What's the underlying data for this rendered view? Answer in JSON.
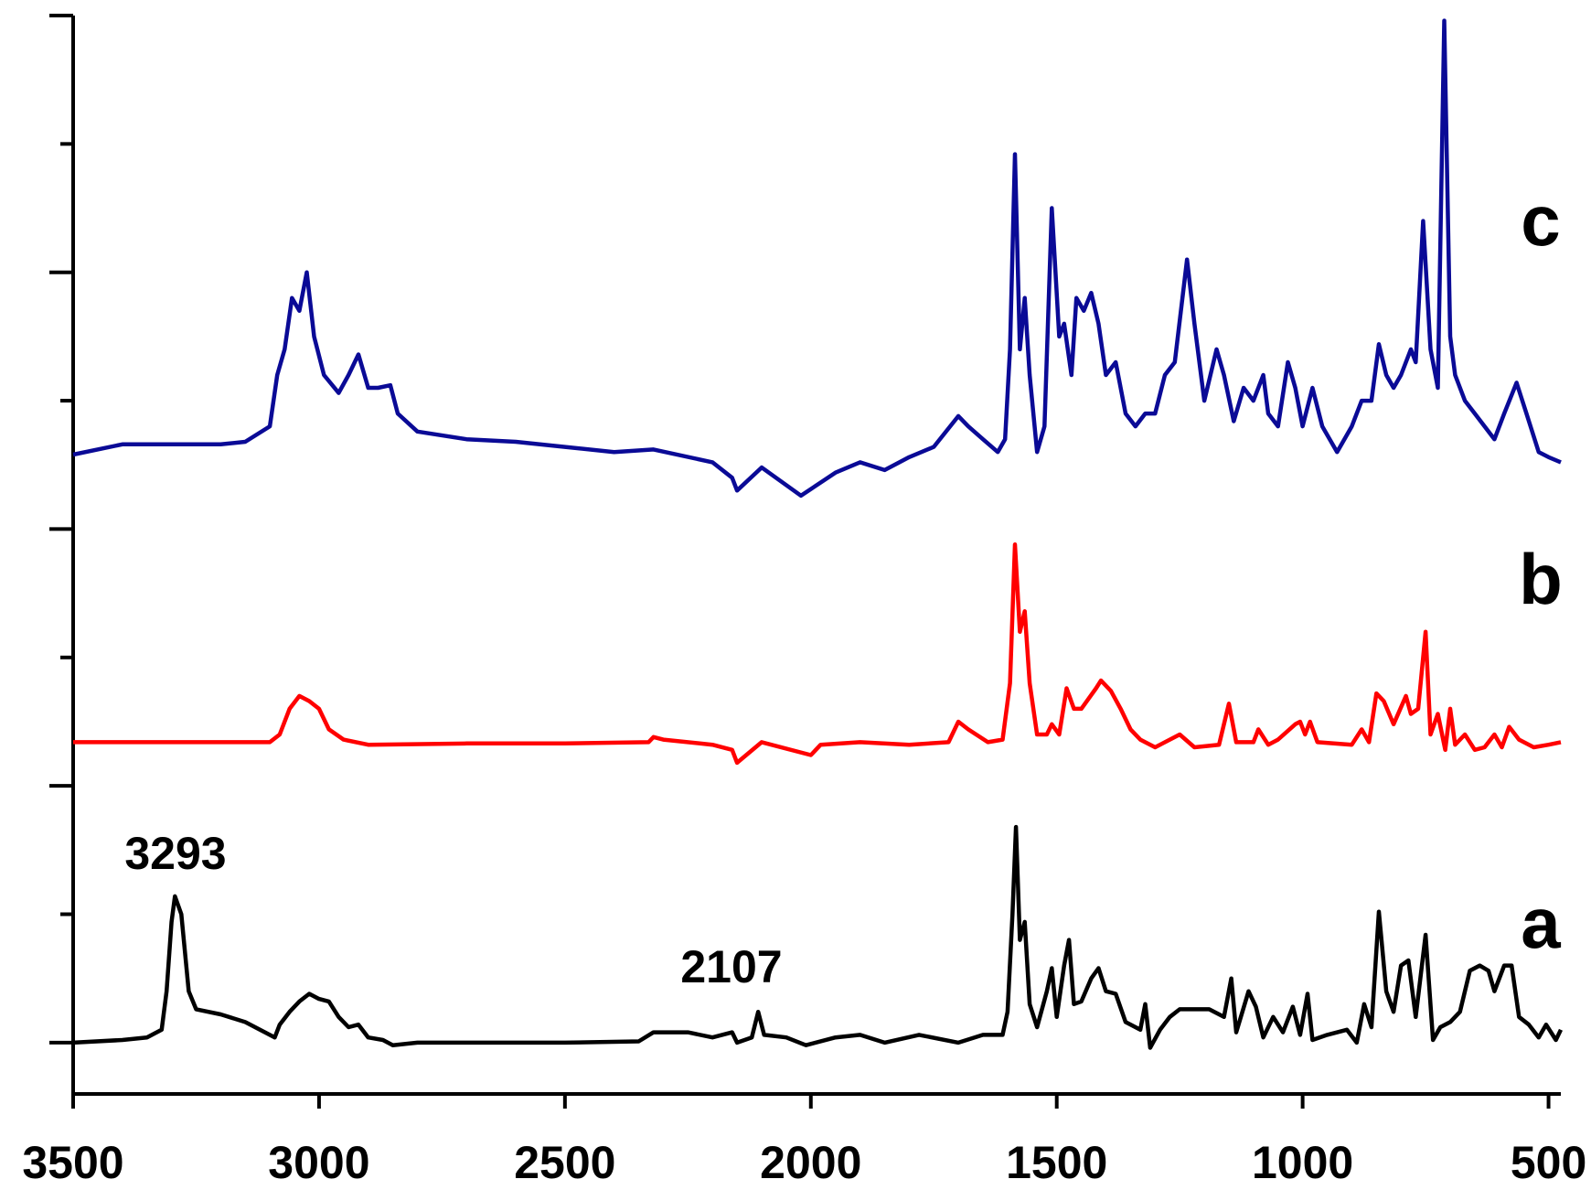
{
  "chart_data": {
    "type": "line",
    "annotations": [
      "3293",
      "2107"
    ],
    "xlim": [
      3500,
      475
    ],
    "xticks": [
      3500,
      3000,
      2500,
      2000,
      1500,
      1000,
      500
    ],
    "ylim": [
      -0.2,
      4
    ],
    "yticks": [
      0,
      0.5,
      1,
      1.5,
      2,
      2.5,
      3,
      3.5,
      4
    ],
    "series": [
      {
        "name": "a",
        "color": "#000000",
        "x": [
          3500,
          3400,
          3350,
          3320,
          3310,
          3300,
          3293,
          3280,
          3265,
          3250,
          3200,
          3150,
          3110,
          3090,
          3080,
          3060,
          3040,
          3020,
          3000,
          2980,
          2960,
          2940,
          2920,
          2900,
          2870,
          2850,
          2800,
          2700,
          2500,
          2350,
          2320,
          2250,
          2200,
          2160,
          2150,
          2120,
          2107,
          2095,
          2050,
          2010,
          1950,
          1900,
          1850,
          1780,
          1700,
          1650,
          1610,
          1600,
          1590,
          1583,
          1575,
          1565,
          1555,
          1540,
          1520,
          1510,
          1500,
          1485,
          1475,
          1465,
          1450,
          1430,
          1415,
          1400,
          1380,
          1360,
          1330,
          1320,
          1310,
          1290,
          1270,
          1250,
          1220,
          1190,
          1160,
          1145,
          1135,
          1110,
          1095,
          1080,
          1060,
          1040,
          1020,
          1005,
          990,
          980,
          950,
          910,
          890,
          875,
          860,
          845,
          830,
          815,
          800,
          785,
          770,
          750,
          735,
          720,
          700,
          680,
          660,
          640,
          622,
          610,
          590,
          575,
          560,
          540,
          520,
          505,
          485,
          475
        ],
        "values": [
          0,
          0.01,
          0.02,
          0.05,
          0.2,
          0.47,
          0.57,
          0.5,
          0.2,
          0.13,
          0.11,
          0.08,
          0.04,
          0.02,
          0.07,
          0.12,
          0.16,
          0.19,
          0.17,
          0.16,
          0.1,
          0.06,
          0.07,
          0.02,
          0.01,
          -0.01,
          0,
          0,
          0,
          0.005,
          0.04,
          0.04,
          0.02,
          0.04,
          0,
          0.02,
          0.12,
          0.03,
          0.02,
          -0.01,
          0.02,
          0.03,
          0,
          0.03,
          0,
          0.03,
          0.03,
          0.12,
          0.5,
          0.84,
          0.4,
          0.47,
          0.15,
          0.06,
          0.2,
          0.29,
          0.1,
          0.3,
          0.4,
          0.15,
          0.16,
          0.25,
          0.29,
          0.2,
          0.19,
          0.08,
          0.05,
          0.15,
          -0.02,
          0.05,
          0.1,
          0.13,
          0.13,
          0.13,
          0.1,
          0.25,
          0.04,
          0.2,
          0.14,
          0.02,
          0.1,
          0.04,
          0.14,
          0.03,
          0.19,
          0.01,
          0.03,
          0.05,
          0,
          0.15,
          0.06,
          0.51,
          0.2,
          0.12,
          0.3,
          0.32,
          0.1,
          0.42,
          0.01,
          0.06,
          0.08,
          0.12,
          0.28,
          0.3,
          0.28,
          0.2,
          0.3,
          0.3,
          0.1,
          0.07,
          0.02,
          0.07,
          0.01,
          0.05
        ]
      },
      {
        "name": "b",
        "color": "#ff0000",
        "x": [
          3500,
          3300,
          3100,
          3080,
          3060,
          3040,
          3020,
          3000,
          2980,
          2950,
          2900,
          2700,
          2500,
          2330,
          2320,
          2300,
          2200,
          2160,
          2150,
          2100,
          2000,
          1980,
          1900,
          1800,
          1720,
          1700,
          1680,
          1640,
          1610,
          1595,
          1585,
          1575,
          1565,
          1555,
          1540,
          1520,
          1510,
          1495,
          1480,
          1465,
          1450,
          1420,
          1410,
          1390,
          1370,
          1350,
          1330,
          1300,
          1250,
          1220,
          1170,
          1150,
          1135,
          1100,
          1090,
          1070,
          1050,
          1015,
          1005,
          995,
          985,
          970,
          900,
          880,
          865,
          850,
          835,
          815,
          790,
          780,
          765,
          750,
          740,
          725,
          710,
          700,
          690,
          670,
          650,
          630,
          610,
          595,
          580,
          560,
          530,
          500,
          475
        ],
        "values": [
          1.17,
          1.17,
          1.17,
          1.2,
          1.3,
          1.35,
          1.33,
          1.3,
          1.22,
          1.18,
          1.16,
          1.165,
          1.165,
          1.17,
          1.19,
          1.18,
          1.16,
          1.14,
          1.09,
          1.17,
          1.12,
          1.16,
          1.17,
          1.16,
          1.17,
          1.25,
          1.22,
          1.17,
          1.18,
          1.4,
          1.94,
          1.6,
          1.68,
          1.4,
          1.2,
          1.2,
          1.24,
          1.2,
          1.38,
          1.3,
          1.3,
          1.38,
          1.41,
          1.37,
          1.3,
          1.22,
          1.18,
          1.15,
          1.2,
          1.15,
          1.16,
          1.32,
          1.17,
          1.17,
          1.22,
          1.16,
          1.18,
          1.24,
          1.25,
          1.2,
          1.25,
          1.17,
          1.16,
          1.22,
          1.17,
          1.36,
          1.33,
          1.24,
          1.35,
          1.28,
          1.3,
          1.6,
          1.2,
          1.28,
          1.14,
          1.3,
          1.16,
          1.2,
          1.14,
          1.15,
          1.2,
          1.15,
          1.23,
          1.18,
          1.15,
          1.16,
          1.17
        ]
      },
      {
        "name": "c",
        "color": "#0a0a96",
        "x": [
          3500,
          3400,
          3300,
          3200,
          3150,
          3100,
          3085,
          3070,
          3055,
          3040,
          3025,
          3010,
          2990,
          2960,
          2940,
          2920,
          2900,
          2880,
          2855,
          2840,
          2800,
          2700,
          2600,
          2500,
          2400,
          2320,
          2200,
          2160,
          2150,
          2100,
          2020,
          1950,
          1900,
          1850,
          1800,
          1750,
          1700,
          1680,
          1650,
          1620,
          1605,
          1595,
          1585,
          1575,
          1565,
          1555,
          1540,
          1525,
          1510,
          1495,
          1485,
          1470,
          1460,
          1445,
          1430,
          1415,
          1400,
          1380,
          1360,
          1340,
          1320,
          1300,
          1280,
          1260,
          1235,
          1220,
          1200,
          1175,
          1160,
          1140,
          1120,
          1100,
          1080,
          1070,
          1050,
          1030,
          1015,
          1000,
          980,
          960,
          930,
          900,
          880,
          860,
          845,
          830,
          815,
          800,
          780,
          770,
          755,
          740,
          725,
          712,
          700,
          690,
          670,
          650,
          630,
          610,
          590,
          565,
          545,
          520,
          500,
          475
        ],
        "values": [
          2.29,
          2.33,
          2.33,
          2.33,
          2.34,
          2.4,
          2.6,
          2.7,
          2.9,
          2.85,
          3.0,
          2.75,
          2.6,
          2.53,
          2.6,
          2.68,
          2.55,
          2.55,
          2.56,
          2.45,
          2.38,
          2.35,
          2.34,
          2.32,
          2.3,
          2.31,
          2.26,
          2.2,
          2.15,
          2.24,
          2.13,
          2.22,
          2.26,
          2.23,
          2.28,
          2.32,
          2.44,
          2.4,
          2.35,
          2.3,
          2.35,
          2.7,
          3.46,
          2.7,
          2.9,
          2.6,
          2.3,
          2.4,
          3.25,
          2.75,
          2.8,
          2.6,
          2.9,
          2.85,
          2.92,
          2.8,
          2.6,
          2.65,
          2.45,
          2.4,
          2.45,
          2.45,
          2.6,
          2.65,
          3.05,
          2.8,
          2.5,
          2.7,
          2.6,
          2.42,
          2.55,
          2.5,
          2.6,
          2.45,
          2.4,
          2.65,
          2.55,
          2.4,
          2.55,
          2.4,
          2.3,
          2.4,
          2.5,
          2.5,
          2.72,
          2.6,
          2.55,
          2.6,
          2.7,
          2.65,
          3.2,
          2.7,
          2.55,
          3.98,
          2.75,
          2.6,
          2.5,
          2.45,
          2.4,
          2.35,
          2.45,
          2.57,
          2.45,
          2.3,
          2.28,
          2.26
        ]
      }
    ]
  }
}
